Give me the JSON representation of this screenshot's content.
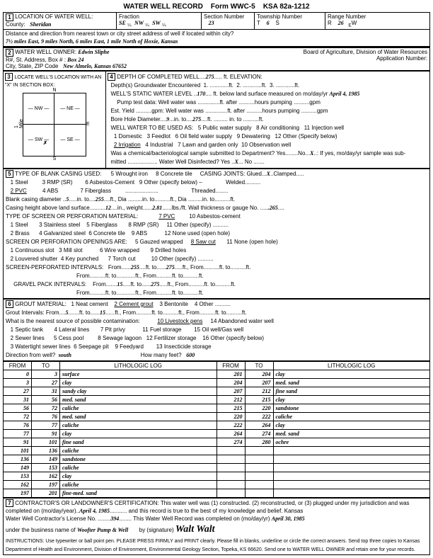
{
  "form": {
    "title": "WATER WELL RECORD",
    "form_no": "Form WWC-5",
    "ksa": "KSA 82a-1212"
  },
  "s1": {
    "label": "LOCATION OF WATER WELL:",
    "county_label": "County:",
    "county": "Sheridan",
    "fraction_label": "Fraction",
    "fraction1": "SE",
    "fraction2": "NW",
    "fraction3": "SW",
    "section_label": "Section Number",
    "section": "23",
    "township_label": "Township Number",
    "township": "6",
    "township_dir": "S",
    "range_label": "Range Number",
    "range": "26",
    "range_dir": "W",
    "dist_label": "Distance and direction from nearest town or city street address of well if located within city?",
    "dist": "7½ miles East, 9 miles North, 6 miles East, 1 mile North of Hoxie, Kansas"
  },
  "s2": {
    "label": "WATER WELL OWNER:",
    "owner": "Edwin Sliphe",
    "addr_label": "R#, St. Address, Box # :",
    "addr": "Box 24",
    "city_label": "City, State, ZIP Code",
    "city": "New Almelo, Kansas   67652",
    "board": "Board of Agriculture, Division of Water Resources",
    "app": "Application Number:"
  },
  "s3": {
    "label": "LOCATE WELL'S LOCATION WITH AN \"X\" IN SECTION BOX:"
  },
  "s4": {
    "label": "DEPTH OF COMPLETED WELL",
    "depth": "275",
    "elev": "ft. ELEVATION:",
    "gw": "Depth(s) Groundwater Encountered",
    "static_label": "WELL'S STATIC WATER LEVEL",
    "static": "170",
    "static_date": "April 4, 1985",
    "bore_label": "Bore Hole Diameter",
    "bore1": "9",
    "bore2": "275"
  },
  "s5": {
    "label": "TYPE OF BLANK CASING USED:",
    "casing_joints": "CASING JOINTS: Glued",
    "cj_x": "X",
    "cj_rest": "Clamped",
    "blank_dia": "5",
    "blank_to": "255",
    "height": "12",
    "weight": "2.81",
    "thickness": ".265",
    "screen_from": "255",
    "screen_to": "275",
    "gravel_from": "15",
    "gravel_to": "275"
  },
  "s6": {
    "label": "GROUT MATERIAL:",
    "gi_from": "5",
    "gi_to": "15",
    "feet": "600",
    "dir": "south"
  },
  "log": {
    "headers": [
      "FROM",
      "TO",
      "LITHOLOGIC LOG",
      "FROM",
      "TO",
      "LITHOLOGIC LOG"
    ],
    "rows": [
      [
        "0",
        "3",
        "surface",
        "201",
        "204",
        "clay"
      ],
      [
        "3",
        "27",
        "clay",
        "204",
        "207",
        "med. sand"
      ],
      [
        "27",
        "31",
        "sandy clay",
        "207",
        "212",
        "fine sand"
      ],
      [
        "31",
        "56",
        "med. sand",
        "212",
        "215",
        "clay"
      ],
      [
        "56",
        "72",
        "caliche",
        "215",
        "220",
        "sandstone"
      ],
      [
        "72",
        "76",
        "med. sand",
        "220",
        "222",
        "caliche"
      ],
      [
        "76",
        "77",
        "caliche",
        "222",
        "264",
        "clay"
      ],
      [
        "77",
        "91",
        "clay",
        "264",
        "274",
        "med. sand"
      ],
      [
        "91",
        "101",
        "fine sand",
        "274",
        "280",
        "ochre"
      ],
      [
        "101",
        "136",
        "caliche",
        "",
        "",
        ""
      ],
      [
        "136",
        "149",
        "sandstone",
        "",
        "",
        ""
      ],
      [
        "149",
        "153",
        "caliche",
        "",
        "",
        ""
      ],
      [
        "153",
        "162",
        "clay",
        "",
        "",
        ""
      ],
      [
        "162",
        "197",
        "caliche",
        "",
        "",
        ""
      ],
      [
        "197",
        "201",
        "fine-med. sand",
        "",
        "",
        ""
      ]
    ]
  },
  "s7": {
    "label": "CONTRACTOR'S OR LANDOWNER'S CERTIFICATION:",
    "cert": "This water well was (1) constructed. (2) reconstructed, or (3) plugged under my jurisdiction and was",
    "date1": "April 4, 1985",
    "lic": "394",
    "date2": "April 30, 1985",
    "biz": "Woofter Pump & Well",
    "instr": "INSTRUCTIONS: Use typewriter or ball point pen. PLEASE PRESS FIRMLY and PRINT clearly. Please fill in blanks, underline or circle the correct answers. Send top three copies to Kansas Department of Health and Environment, Division of Environment, Environmental Geology Section, Topeka, KS 66620. Send one to WATER WELL OWNER and retain one for your records."
  }
}
